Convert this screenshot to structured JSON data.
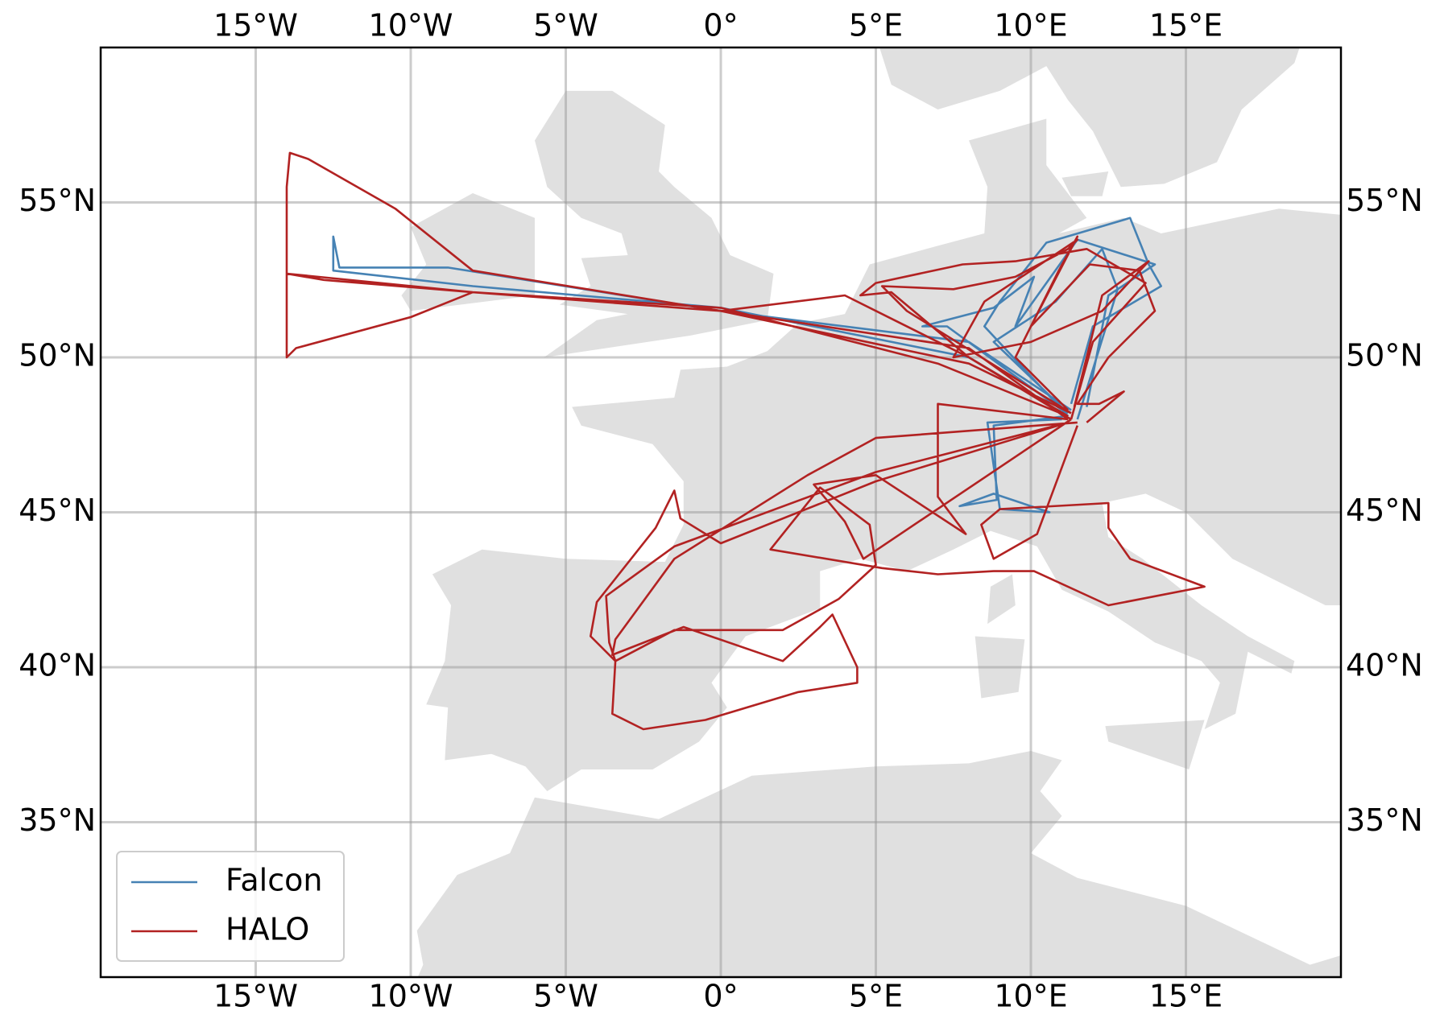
{
  "chart_data": {
    "type": "map-tracks",
    "xlim": [
      -20,
      20
    ],
    "ylim": [
      30,
      60
    ],
    "xticks": [
      {
        "value": -15,
        "label": "15°W"
      },
      {
        "value": -10,
        "label": "10°W"
      },
      {
        "value": -5,
        "label": "5°W"
      },
      {
        "value": 0,
        "label": "0°"
      },
      {
        "value": 5,
        "label": "5°E"
      },
      {
        "value": 10,
        "label": "10°E"
      },
      {
        "value": 15,
        "label": "15°E"
      }
    ],
    "yticks": [
      {
        "value": 35,
        "label": "35°N"
      },
      {
        "value": 40,
        "label": "40°N"
      },
      {
        "value": 45,
        "label": "45°N"
      },
      {
        "value": 50,
        "label": "50°N"
      },
      {
        "value": 55,
        "label": "55°N"
      }
    ],
    "grid": true,
    "legend": "lower left",
    "series": [
      {
        "name": "Falcon",
        "color": "#4682b4",
        "x": [
          11.2,
          8,
          0,
          -8,
          -12.5,
          -12.5,
          -12.3,
          -8.8,
          0,
          8,
          11.3,
          null,
          11.2,
          8.5,
          9,
          10.5,
          13.2,
          13.8,
          14.2,
          12,
          11.3,
          null,
          11.1,
          8.8,
          8.9,
          7.7,
          8.8,
          10.6,
          9,
          8.6,
          11,
          null,
          11,
          7.3,
          6.5,
          8.8,
          10.1,
          9.5,
          11.5,
          14,
          12.5,
          11.8,
          null,
          11.2,
          8.8,
          10.8,
          12.3,
          12.8,
          11.5
        ],
        "y": [
          48.1,
          50,
          51.6,
          52.3,
          52.8,
          53.9,
          52.9,
          52.9,
          51.5,
          50.5,
          48.3,
          null,
          48.1,
          51,
          51.8,
          53.7,
          54.5,
          53,
          52.3,
          51,
          48.5,
          null,
          48.1,
          47.8,
          45.4,
          45.2,
          45.6,
          45,
          45.1,
          47.9,
          48,
          null,
          48.3,
          51,
          51,
          51.6,
          52.6,
          51,
          53.8,
          53,
          52,
          48.4,
          null,
          48.2,
          50.5,
          51.8,
          53.5,
          52.2,
          48
        ]
      },
      {
        "name": "HALO",
        "color": "#b22222",
        "x": [
          11.2,
          7,
          0,
          -8,
          -14,
          -14,
          -13.7,
          -10,
          -8,
          0,
          4,
          8,
          11.3,
          null,
          11.2,
          8,
          0,
          -8,
          -10.5,
          -13.3,
          -13.9,
          -14,
          -14,
          -12.8,
          -8,
          0,
          8,
          11.3,
          null,
          11.2,
          5,
          -1.5,
          -3.7,
          -3.6,
          -3.4,
          -3.5,
          -2.5,
          -0.5,
          2.5,
          4.4,
          4.4,
          3.6,
          3.2,
          2,
          -1.2,
          -3.5,
          -3.4,
          -1.5,
          2.8,
          5,
          11.5,
          null,
          11.2,
          5,
          0,
          -1.3,
          -1.5,
          -2.1,
          -4,
          -4.2,
          -3.4,
          -1.5,
          2,
          3.8,
          5,
          4.8,
          3.2,
          1.6,
          5.2,
          7,
          8.8,
          10.1,
          12.5,
          15.6,
          13.2,
          12.5,
          12.5,
          9,
          8.4,
          8.8,
          10.2,
          11.5,
          null,
          11.2,
          7,
          7,
          7.9,
          5,
          3,
          4,
          4.6,
          11.3,
          null,
          11.3,
          6,
          5.2,
          7.5,
          9.5,
          11.2,
          11.5,
          8.5,
          7.5,
          10,
          12.3,
          13.8,
          12.3,
          11.4,
          null,
          11.2,
          9.5,
          10.9,
          11.5,
          10,
          11.9,
          13.5,
          14,
          12.5,
          11.5,
          12.2,
          13,
          11.8,
          null,
          11.2,
          8,
          5.5,
          4.5,
          5,
          7.8,
          9.5,
          11.8,
          13.7,
          12,
          11.3
        ],
        "y": [
          48.1,
          49.8,
          51.6,
          52.1,
          52.7,
          50,
          50.3,
          51.3,
          52.1,
          51.5,
          52,
          50,
          48,
          null,
          48,
          50.3,
          51.5,
          52.8,
          54.8,
          56.4,
          56.6,
          55.5,
          52.7,
          52.5,
          52.1,
          51.5,
          49.8,
          48.2,
          null,
          47.9,
          46.3,
          43.9,
          42.3,
          40.8,
          40.2,
          38.5,
          38,
          38.3,
          39.2,
          39.5,
          40,
          41.7,
          41.3,
          40.2,
          41.3,
          40.4,
          40.9,
          43.5,
          46.2,
          47.4,
          47.9,
          null,
          47.9,
          46,
          44,
          44.8,
          45.7,
          44.5,
          42.1,
          41,
          40.2,
          41.2,
          41.2,
          42.2,
          43.3,
          44.6,
          45.8,
          43.8,
          43.2,
          43,
          43.1,
          43.1,
          42,
          42.6,
          43.5,
          44.5,
          45.3,
          45.1,
          44.6,
          43.5,
          44.3,
          47.8,
          null,
          48,
          48.5,
          45.5,
          44.3,
          46.2,
          45.9,
          44.7,
          43.5,
          48,
          null,
          48.2,
          51.5,
          52.3,
          52.2,
          52.6,
          53.5,
          53.8,
          51.8,
          50,
          50.5,
          51.5,
          53.1,
          52,
          48.4,
          null,
          48.3,
          50,
          52.8,
          53.9,
          51,
          53,
          52.8,
          51.5,
          50,
          48.5,
          48.5,
          48.9,
          47.9,
          null,
          48.1,
          50,
          52.1,
          52,
          52.4,
          53,
          53.1,
          53.5,
          52.4,
          50.5,
          48
        ]
      }
    ]
  }
}
